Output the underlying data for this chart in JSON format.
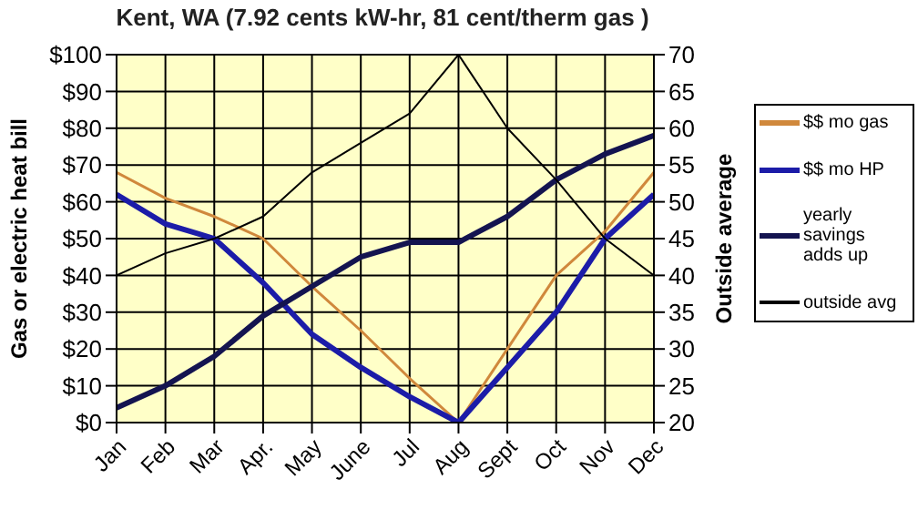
{
  "chart_data": {
    "type": "line",
    "title": "Kent, WA (7.92 cents kW-hr, 81 cent/therm gas )",
    "ylabel": "Gas or electric heat bill",
    "y2label": "Outside average",
    "categories": [
      "Jan",
      "Feb",
      "Mar",
      "Apr.",
      "May",
      "June",
      "Jul",
      "Aug",
      "Sept",
      "Oct",
      "Nov",
      "Dec"
    ],
    "series": [
      {
        "name": "$$ mo gas",
        "color": "#d0883c",
        "values": [
          68,
          61,
          56,
          50,
          37,
          25,
          12,
          0,
          20,
          40,
          52,
          68
        ]
      },
      {
        "name": "$$ mo HP",
        "color": "#1c1ca8",
        "values": [
          62,
          54,
          50,
          38,
          24,
          15,
          7,
          0,
          15,
          30,
          50,
          62
        ]
      },
      {
        "name": "yearly savings adds up",
        "color": "#141450",
        "values": [
          4,
          10,
          18,
          29,
          37,
          45,
          49,
          49,
          56,
          66,
          73,
          78
        ]
      },
      {
        "name": "outside avg",
        "color": "#000000",
        "axis": "y2",
        "values": [
          40,
          43,
          45,
          48,
          54,
          58,
          62,
          70,
          60,
          53,
          45,
          40
        ]
      }
    ],
    "ylim": [
      0,
      100
    ],
    "yticks": [
      {
        "value": 0,
        "label": "$0"
      },
      {
        "value": 10,
        "label": "$10"
      },
      {
        "value": 20,
        "label": "$20"
      },
      {
        "value": 30,
        "label": "$30"
      },
      {
        "value": 40,
        "label": "$40"
      },
      {
        "value": 50,
        "label": "$50"
      },
      {
        "value": 60,
        "label": "$60"
      },
      {
        "value": 70,
        "label": "$70"
      },
      {
        "value": 80,
        "label": "$80"
      },
      {
        "value": 90,
        "label": "$90"
      },
      {
        "value": 100,
        "label": "$100"
      }
    ],
    "y2lim": [
      20,
      70
    ],
    "y2ticks": [
      20,
      25,
      30,
      35,
      40,
      45,
      50,
      55,
      60,
      65,
      70
    ],
    "grid": true,
    "legend": "right",
    "marker": "none",
    "line_style": "solid"
  }
}
